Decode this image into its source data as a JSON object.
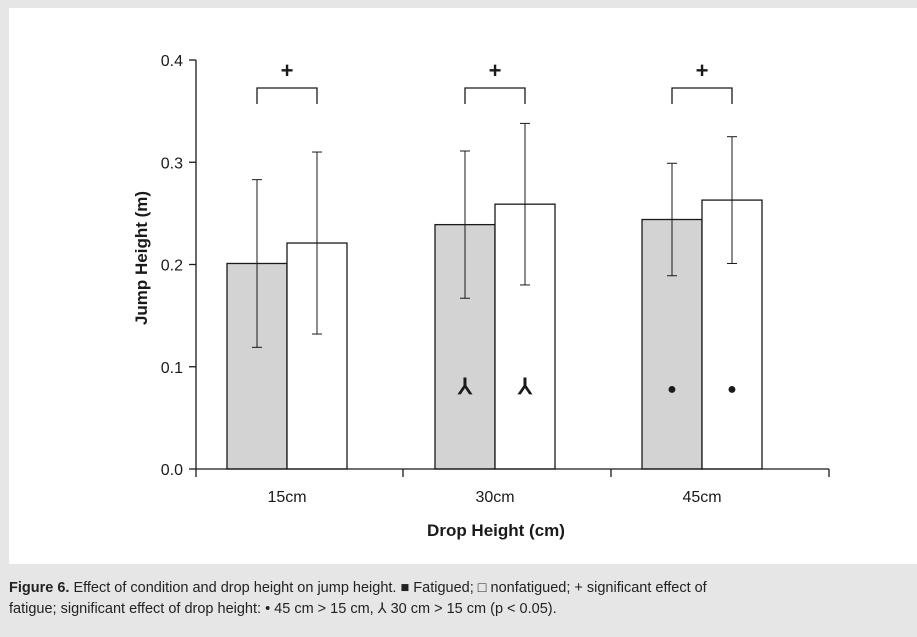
{
  "chart_data": {
    "type": "bar",
    "categories": [
      "15cm",
      "30cm",
      "45cm"
    ],
    "xlabel": "Drop Height (cm)",
    "ylabel": "Jump Height (m)",
    "ylim": [
      0,
      0.4
    ],
    "yticks": [
      "0.0",
      "0.1",
      "0.2",
      "0.3",
      "0.4"
    ],
    "series": [
      {
        "name": "Fatigued",
        "color": "#d3d3d3",
        "values": [
          0.201,
          0.239,
          0.244
        ],
        "error": [
          0.082,
          0.072,
          0.055
        ]
      },
      {
        "name": "nonfatigued",
        "color": "#ffffff",
        "values": [
          0.221,
          0.259,
          0.263
        ],
        "error": [
          0.089,
          0.079,
          0.062
        ]
      }
    ],
    "significance_marks": [
      "+",
      "+",
      "+"
    ],
    "bar_markers": [
      {
        "category": "30cm",
        "symbol": "⅄",
        "y": 0.08
      },
      {
        "category": "45cm",
        "symbol": "●",
        "y": 0.08
      }
    ],
    "grid": false,
    "legend": "none"
  },
  "caption": {
    "label": "Figure 6.",
    "text": " Effect of condition and drop height on jump height. ■ Fatigued; □ nonfatigued; + significant effect of\nfatigue; significant effect of drop height: • 45 cm > 15 cm, ⅄ 30 cm > 15 cm (p < 0.05)."
  }
}
